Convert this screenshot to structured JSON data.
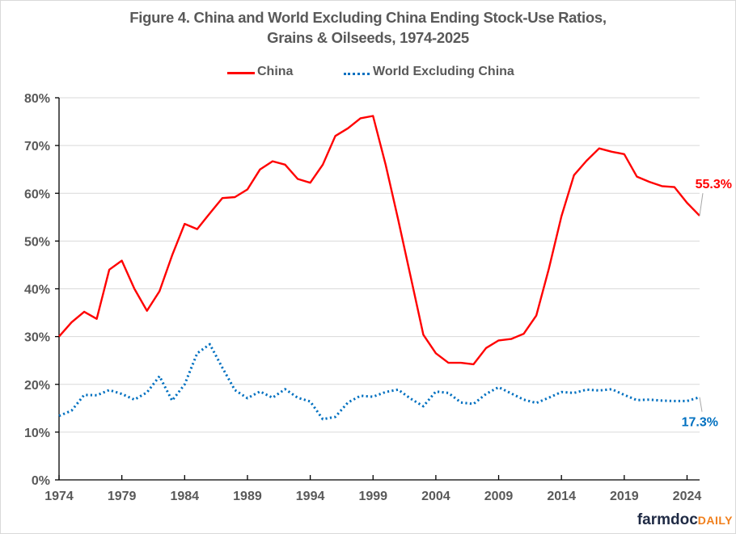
{
  "chart_data": {
    "type": "line",
    "title": "Figure 4.  China and World Excluding China Ending Stock-Use Ratios,",
    "subtitle": "Grains & Oilseeds, 1974-2025",
    "xlabel": "",
    "ylabel": "",
    "ylim": [
      0,
      80
    ],
    "xlim": [
      1974,
      2025
    ],
    "yticks": [
      "0%",
      "10%",
      "20%",
      "30%",
      "40%",
      "50%",
      "60%",
      "70%",
      "80%"
    ],
    "ytick_values": [
      0,
      10,
      20,
      30,
      40,
      50,
      60,
      70,
      80
    ],
    "xticks": [
      "1974",
      "1979",
      "1984",
      "1989",
      "1994",
      "1999",
      "2004",
      "2009",
      "2014",
      "2019",
      "2024"
    ],
    "xtick_values": [
      1974,
      1979,
      1984,
      1989,
      1994,
      1999,
      2004,
      2009,
      2014,
      2019,
      2024
    ],
    "grid": true,
    "legend_position": "top",
    "x": [
      1974,
      1975,
      1976,
      1977,
      1978,
      1979,
      1980,
      1981,
      1982,
      1983,
      1984,
      1985,
      1986,
      1987,
      1988,
      1989,
      1990,
      1991,
      1992,
      1993,
      1994,
      1995,
      1996,
      1997,
      1998,
      1999,
      2000,
      2001,
      2002,
      2003,
      2004,
      2005,
      2006,
      2007,
      2008,
      2009,
      2010,
      2011,
      2012,
      2013,
      2014,
      2015,
      2016,
      2017,
      2018,
      2019,
      2020,
      2021,
      2022,
      2023,
      2024,
      2025
    ],
    "series": [
      {
        "name": "China",
        "color": "#ff0000",
        "style": "solid",
        "values": [
          30,
          33,
          35.2,
          33.7,
          44,
          45.9,
          40,
          35.4,
          39.5,
          47,
          53.6,
          52.5,
          55.8,
          59,
          59.2,
          60.8,
          65,
          66.7,
          66,
          63,
          62.2,
          66,
          72,
          73.6,
          75.7,
          76.2,
          66,
          54.5,
          42.5,
          30.4,
          26.5,
          24.5,
          24.5,
          24.2,
          27.6,
          29.2,
          29.5,
          30.6,
          34.4,
          44.2,
          55.2,
          63.8,
          66.8,
          69.4,
          68.7,
          68.2,
          63.5,
          62.4,
          61.5,
          61.3,
          58,
          55.3
        ],
        "end_label": "55.3%"
      },
      {
        "name": "World Excluding China",
        "color": "#0070c0",
        "style": "dotted",
        "values": [
          13.4,
          14.5,
          17.8,
          17.7,
          18.8,
          18,
          16.8,
          18.3,
          21.7,
          16.6,
          20,
          26.5,
          28.4,
          23.5,
          18.8,
          17.1,
          18.5,
          17.2,
          19,
          17.2,
          16.4,
          12.7,
          13.2,
          16.2,
          17.6,
          17.4,
          18.4,
          18.9,
          17,
          15.4,
          18.5,
          18.2,
          16.2,
          15.9,
          18,
          19.4,
          18.1,
          16.8,
          16.1,
          17.2,
          18.4,
          18.2,
          18.9,
          18.7,
          19,
          17.8,
          16.7,
          16.8,
          16.6,
          16.5,
          16.5,
          17.3
        ],
        "end_label": "17.3%"
      }
    ]
  },
  "branding": {
    "logo_part1": "farmdoc",
    "logo_part2": "DAILY"
  }
}
